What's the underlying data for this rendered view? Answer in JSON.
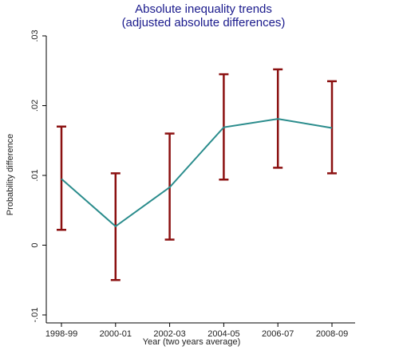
{
  "chart_data": {
    "type": "line",
    "title": "Absolute inequality trends",
    "subtitle": "(adjusted absolute differences)",
    "xlabel": "Year (two years average)",
    "ylabel": "Probability difference",
    "categories": [
      "1998-99",
      "2000-01",
      "2002-03",
      "2004-05",
      "2006-07",
      "2008-09"
    ],
    "y_ticks": [
      -0.01,
      0,
      0.01,
      0.02,
      0.03
    ],
    "y_tick_labels": [
      "-.01",
      "0",
      ".01",
      ".02",
      ".03"
    ],
    "ylim": [
      -0.01,
      0.03
    ],
    "grid": false,
    "legend": "none",
    "series": [
      {
        "values": [
          0.0095,
          0.0027,
          0.0083,
          0.0169,
          0.0181,
          0.0168
        ],
        "lower": [
          0.0022,
          -0.005,
          0.0008,
          0.0094,
          0.0111,
          0.0103
        ],
        "upper": [
          0.017,
          0.0103,
          0.016,
          0.0245,
          0.0252,
          0.0235
        ]
      }
    ],
    "colors": {
      "line": "#2a8c8c",
      "error_bar": "#8b1010",
      "axis": "#000000",
      "title": "#1a1a8c"
    }
  }
}
